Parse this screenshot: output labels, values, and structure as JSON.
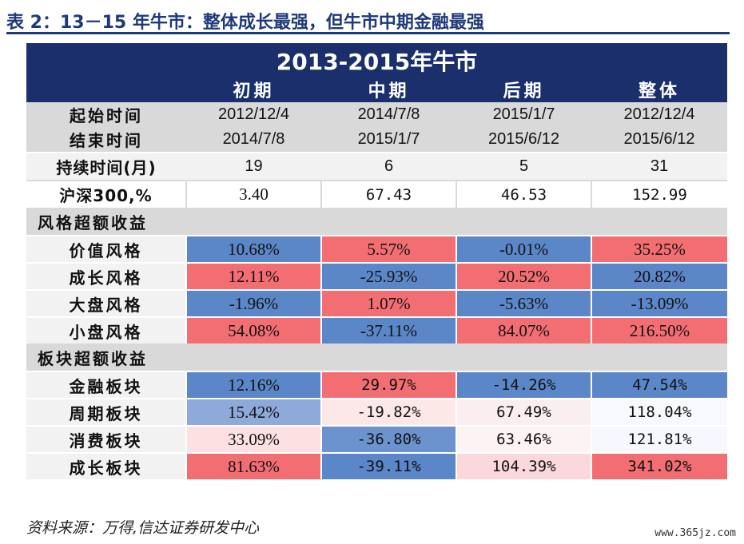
{
  "title": "表 2：13－15 年牛市：整体成长最强，但牛市中期金融最强",
  "table": {
    "banner": "2013-2015年牛市",
    "phases": [
      "初期",
      "中期",
      "后期",
      "整体"
    ],
    "start_label": "起始时间",
    "start_dates": [
      "2012/12/4",
      "2014/7/8",
      "2015/1/7",
      "2012/12/4"
    ],
    "end_label": "结束时间",
    "end_dates": [
      "2014/7/8",
      "2015/1/7",
      "2015/6/12",
      "2015/6/12"
    ],
    "duration_label": "持续时间(月)",
    "durations": [
      "19",
      "6",
      "5",
      "31"
    ],
    "csi_label": "沪深300,%",
    "csi_values": [
      "3.40",
      "67.43",
      "46.53",
      "152.99"
    ],
    "style_section": "风格超额收益",
    "style_rows": [
      {
        "label": "价值风格",
        "values": [
          "10.68%",
          "5.57%",
          "-0.01%",
          "35.25%"
        ],
        "colors": [
          "#5b86c8",
          "#f36e73",
          "#5b86c8",
          "#f36e73"
        ]
      },
      {
        "label": "成长风格",
        "values": [
          "12.11%",
          "-25.93%",
          "20.52%",
          "20.82%"
        ],
        "colors": [
          "#f36e73",
          "#5b86c8",
          "#f36e73",
          "#5b86c8"
        ]
      },
      {
        "label": "大盘风格",
        "values": [
          "-1.96%",
          "1.07%",
          "-5.63%",
          "-13.09%"
        ],
        "colors": [
          "#5b86c8",
          "#f36e73",
          "#5b86c8",
          "#5b86c8"
        ]
      },
      {
        "label": "小盘风格",
        "values": [
          "54.08%",
          "-37.11%",
          "84.07%",
          "216.50%"
        ],
        "colors": [
          "#f36e73",
          "#5b86c8",
          "#f36e73",
          "#f36e73"
        ]
      }
    ],
    "sector_section": "板块超额收益",
    "sector_rows": [
      {
        "label": "金融板块",
        "values": [
          "12.16%",
          "29.97%",
          "-14.26%",
          "47.54%"
        ],
        "colors": [
          "#5b86c8",
          "#f36e73",
          "#5b86c8",
          "#5b86c8"
        ]
      },
      {
        "label": "周期板块",
        "values": [
          "15.42%",
          "-19.82%",
          "67.49%",
          "118.04%"
        ],
        "colors": [
          "#8eaadb",
          "#fde8e8",
          "#fbeef0",
          "#f7f9fd"
        ]
      },
      {
        "label": "消费板块",
        "values": [
          "33.09%",
          "-36.80%",
          "63.46%",
          "121.81%"
        ],
        "colors": [
          "#fde0e2",
          "#6d93cf",
          "#fdf3f4",
          "#f6f8fd"
        ]
      },
      {
        "label": "成长板块",
        "values": [
          "81.63%",
          "-39.11%",
          "104.39%",
          "341.02%"
        ],
        "colors": [
          "#f36e73",
          "#5b86c8",
          "#fbd8db",
          "#f36e73"
        ]
      }
    ]
  },
  "source": "资料来源：万得,信达证券研发中心",
  "watermark": "www.365jz.com"
}
